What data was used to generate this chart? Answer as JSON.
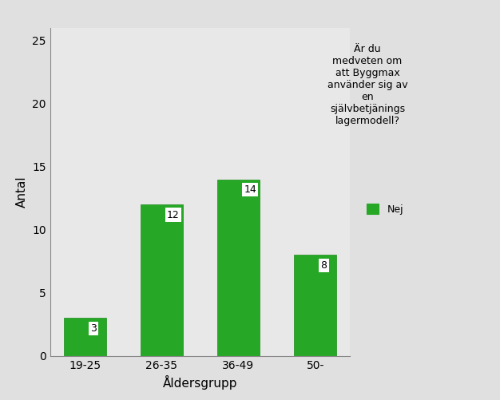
{
  "categories": [
    "19-25",
    "26-35",
    "36-49",
    "50-"
  ],
  "values": [
    3,
    12,
    14,
    8
  ],
  "bar_color": "#26a826",
  "bar_edgecolor": "#1a8c1a",
  "plot_bg_color": "#e8e8e8",
  "fig_bg_color": "#e0e0e0",
  "xlabel": "Åldersgrupp",
  "ylabel": "Antal",
  "ylim": [
    0,
    26
  ],
  "yticks": [
    0,
    5,
    10,
    15,
    20,
    25
  ],
  "legend_title": "Är du\nmedveten om\natt Byggmax\nanvänder sig av\nen\nsjälvbetjänings\nlagermodell?",
  "legend_label": "Nej",
  "xlabel_fontsize": 11,
  "ylabel_fontsize": 11,
  "tick_fontsize": 10,
  "bar_label_fontsize": 9,
  "legend_title_fontsize": 9,
  "legend_label_fontsize": 9
}
